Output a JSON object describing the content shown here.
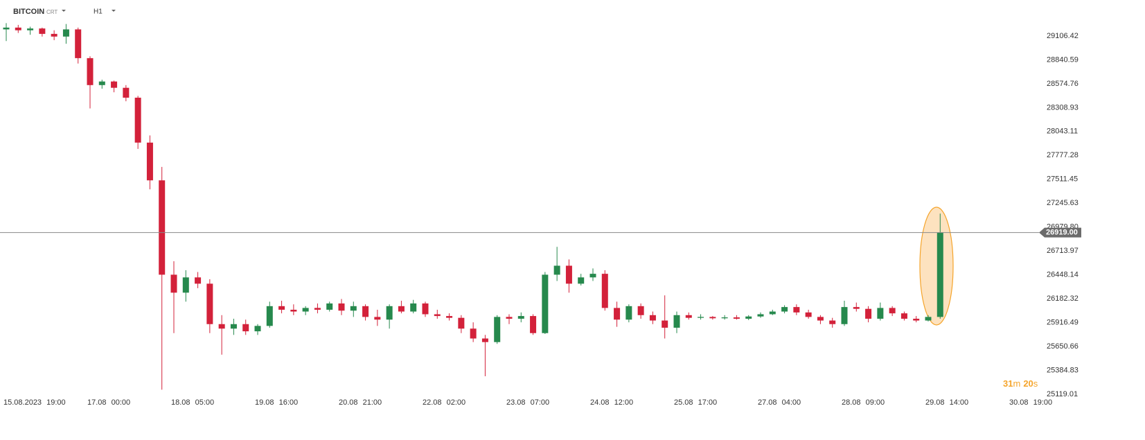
{
  "header": {
    "symbol": "BITCOIN",
    "kind": "CRT",
    "timeframe": "H1"
  },
  "timer": {
    "minutes": "31",
    "minutes_unit": "m",
    "seconds": "20",
    "seconds_unit": "s"
  },
  "chart_data": {
    "type": "candlestick",
    "up_color": "#26894d",
    "down_color": "#d3213a",
    "ylim": [
      25073,
      29507
    ],
    "yticks": [
      29106.42,
      28840.59,
      28574.76,
      28308.93,
      28043.11,
      27777.28,
      27511.45,
      27245.63,
      {
        "value": 26979.8,
        "label": "26979.80"
      },
      26713.97,
      26448.14,
      26182.32,
      25916.49,
      25650.66,
      25384.83,
      25119.01
    ],
    "last_price": {
      "value": 26919,
      "label": "26919.00"
    },
    "categories": [
      "15.08.2023 19:00",
      null,
      null,
      null,
      null,
      null,
      null,
      "17.08 00:00",
      null,
      null,
      null,
      null,
      null,
      null,
      "18.08 05:00",
      null,
      null,
      null,
      null,
      null,
      null,
      "19.08 16:00",
      null,
      null,
      null,
      null,
      null,
      null,
      "20.08 21:00",
      null,
      null,
      null,
      null,
      null,
      null,
      "22.08 02:00",
      null,
      null,
      null,
      null,
      null,
      null,
      "23.08 07:00",
      null,
      null,
      null,
      null,
      null,
      null,
      "24.08 12:00",
      null,
      null,
      null,
      null,
      null,
      null,
      "25.08 17:00",
      null,
      null,
      null,
      null,
      null,
      null,
      "27.08 04:00",
      null,
      null,
      null,
      null,
      null,
      null,
      "28.08 09:00",
      null,
      null,
      null,
      null,
      null,
      null,
      "29.08 14:00",
      null,
      null,
      null,
      null,
      null,
      null,
      "30.08 19:00"
    ],
    "ohlc": [
      [
        29180,
        29250,
        29050,
        29200
      ],
      [
        29200,
        29230,
        29140,
        29170
      ],
      [
        29170,
        29210,
        29120,
        29190
      ],
      [
        29190,
        29200,
        29100,
        29130
      ],
      [
        29130,
        29170,
        29060,
        29100
      ],
      [
        29100,
        29240,
        29020,
        29180
      ],
      [
        29180,
        29200,
        28800,
        28860
      ],
      [
        28860,
        28880,
        28300,
        28560
      ],
      [
        28560,
        28620,
        28520,
        28600
      ],
      [
        28600,
        28610,
        28480,
        28530
      ],
      [
        28530,
        28560,
        28380,
        28420
      ],
      [
        28420,
        28440,
        27850,
        27920
      ],
      [
        27920,
        28000,
        27400,
        27500
      ],
      [
        27500,
        27650,
        25170,
        26450
      ],
      [
        26450,
        26600,
        25800,
        26250
      ],
      [
        26250,
        26500,
        26150,
        26420
      ],
      [
        26420,
        26480,
        26300,
        26350
      ],
      [
        26350,
        26400,
        25800,
        25900
      ],
      [
        25900,
        26000,
        25560,
        25850
      ],
      [
        25850,
        25960,
        25780,
        25900
      ],
      [
        25900,
        25950,
        25780,
        25820
      ],
      [
        25820,
        25900,
        25780,
        25880
      ],
      [
        25880,
        26150,
        25860,
        26100
      ],
      [
        26100,
        26160,
        26020,
        26060
      ],
      [
        26060,
        26120,
        26000,
        26040
      ],
      [
        26040,
        26100,
        26000,
        26080
      ],
      [
        26080,
        26130,
        26020,
        26060
      ],
      [
        26060,
        26150,
        26040,
        26130
      ],
      [
        26130,
        26180,
        26000,
        26050
      ],
      [
        26050,
        26150,
        25980,
        26100
      ],
      [
        26100,
        26120,
        25940,
        25980
      ],
      [
        25980,
        26060,
        25880,
        25950
      ],
      [
        25950,
        26120,
        25850,
        26100
      ],
      [
        26100,
        26160,
        26020,
        26040
      ],
      [
        26040,
        26170,
        26020,
        26130
      ],
      [
        26130,
        26150,
        25980,
        26010
      ],
      [
        26010,
        26060,
        25960,
        25990
      ],
      [
        25990,
        26020,
        25940,
        25970
      ],
      [
        25970,
        26000,
        25800,
        25850
      ],
      [
        25850,
        25920,
        25700,
        25740
      ],
      [
        25740,
        25780,
        25320,
        25700
      ],
      [
        25700,
        26000,
        25680,
        25980
      ],
      [
        25980,
        26010,
        25900,
        25960
      ],
      [
        25960,
        26030,
        25920,
        25990
      ],
      [
        25990,
        26010,
        25780,
        25800
      ],
      [
        25800,
        26480,
        25790,
        26450
      ],
      [
        26450,
        26760,
        26380,
        26550
      ],
      [
        26550,
        26620,
        26250,
        26350
      ],
      [
        26350,
        26460,
        26330,
        26420
      ],
      [
        26420,
        26520,
        26380,
        26460
      ],
      [
        26460,
        26500,
        26050,
        26080
      ],
      [
        26080,
        26150,
        25870,
        25950
      ],
      [
        25950,
        26120,
        25920,
        26100
      ],
      [
        26100,
        26130,
        25960,
        26000
      ],
      [
        26000,
        26040,
        25900,
        25940
      ],
      [
        25940,
        26220,
        25740,
        25860
      ],
      [
        25860,
        26040,
        25800,
        26000
      ],
      [
        26000,
        26030,
        25950,
        25970
      ],
      [
        25970,
        26010,
        25950,
        25980
      ],
      [
        25980,
        25990,
        25950,
        25965
      ],
      [
        25965,
        26000,
        25950,
        25975
      ],
      [
        25975,
        26000,
        25950,
        25960
      ],
      [
        25960,
        26000,
        25945,
        25985
      ],
      [
        25985,
        26030,
        25970,
        26010
      ],
      [
        26010,
        26060,
        26000,
        26040
      ],
      [
        26040,
        26110,
        26020,
        26090
      ],
      [
        26090,
        26120,
        26000,
        26030
      ],
      [
        26030,
        26060,
        25960,
        25980
      ],
      [
        25980,
        26000,
        25900,
        25940
      ],
      [
        25940,
        25970,
        25860,
        25900
      ],
      [
        25900,
        26160,
        25880,
        26090
      ],
      [
        26090,
        26140,
        26040,
        26070
      ],
      [
        26070,
        26100,
        25920,
        25960
      ],
      [
        25960,
        26140,
        25940,
        26080
      ],
      [
        26080,
        26100,
        25990,
        26020
      ],
      [
        26020,
        26040,
        25940,
        25960
      ],
      [
        25960,
        25990,
        25920,
        25940
      ],
      [
        25940,
        26000,
        25930,
        25980
      ],
      [
        25980,
        27130,
        25960,
        26919
      ],
      null,
      null,
      null,
      null,
      null,
      null
    ]
  }
}
